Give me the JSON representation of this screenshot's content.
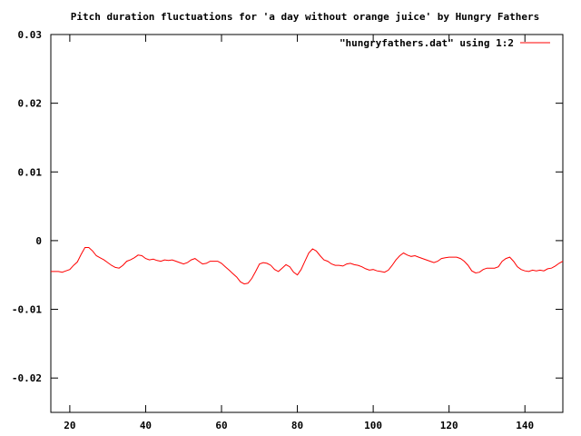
{
  "chart_data": {
    "type": "line",
    "title": "Pitch duration fluctuations for 'a day without orange juice' by Hungry Fathers",
    "xlabel": "",
    "ylabel": "",
    "xlim": [
      15,
      150
    ],
    "ylim": [
      -0.025,
      0.03
    ],
    "x_ticks": [
      20,
      40,
      60,
      80,
      100,
      120,
      140
    ],
    "y_ticks": [
      0.03,
      0.02,
      0.01,
      0,
      -0.01,
      -0.02
    ],
    "x_tick_labels": [
      "20",
      "40",
      "60",
      "80",
      "100",
      "120",
      "140"
    ],
    "y_tick_labels": [
      "0.03",
      "0.02",
      "0.01",
      "0",
      "-0.01",
      "-0.02"
    ],
    "grid": false,
    "legend_position": "top-right",
    "series": [
      {
        "name": "\"hungryfathers.dat\" using 1:2",
        "color": "#ff0000",
        "points": [
          [
            15,
            -0.0045
          ],
          [
            17,
            -0.0045
          ],
          [
            18,
            -0.0046
          ],
          [
            19,
            -0.0044
          ],
          [
            20,
            -0.0042
          ],
          [
            21,
            -0.0036
          ],
          [
            22,
            -0.0031
          ],
          [
            23,
            -0.002
          ],
          [
            24,
            -0.001
          ],
          [
            25,
            -0.001
          ],
          [
            26,
            -0.0015
          ],
          [
            27,
            -0.0022
          ],
          [
            28,
            -0.0025
          ],
          [
            29,
            -0.0028
          ],
          [
            30,
            -0.0032
          ],
          [
            31,
            -0.0036
          ],
          [
            32,
            -0.0039
          ],
          [
            33,
            -0.004
          ],
          [
            34,
            -0.0036
          ],
          [
            35,
            -0.003
          ],
          [
            36,
            -0.0028
          ],
          [
            37,
            -0.0025
          ],
          [
            38,
            -0.0021
          ],
          [
            39,
            -0.0022
          ],
          [
            40,
            -0.0026
          ],
          [
            41,
            -0.0028
          ],
          [
            42,
            -0.0027
          ],
          [
            43,
            -0.0029
          ],
          [
            44,
            -0.003
          ],
          [
            45,
            -0.0028
          ],
          [
            46,
            -0.0029
          ],
          [
            47,
            -0.0028
          ],
          [
            48,
            -0.003
          ],
          [
            49,
            -0.0032
          ],
          [
            50,
            -0.0034
          ],
          [
            51,
            -0.0032
          ],
          [
            52,
            -0.0028
          ],
          [
            53,
            -0.0026
          ],
          [
            54,
            -0.003
          ],
          [
            55,
            -0.0034
          ],
          [
            56,
            -0.0033
          ],
          [
            57,
            -0.003
          ],
          [
            58,
            -0.003
          ],
          [
            59,
            -0.003
          ],
          [
            60,
            -0.0033
          ],
          [
            61,
            -0.0038
          ],
          [
            62,
            -0.0043
          ],
          [
            63,
            -0.0048
          ],
          [
            64,
            -0.0053
          ],
          [
            65,
            -0.006
          ],
          [
            66,
            -0.0063
          ],
          [
            67,
            -0.0062
          ],
          [
            68,
            -0.0055
          ],
          [
            69,
            -0.0045
          ],
          [
            70,
            -0.0034
          ],
          [
            71,
            -0.0032
          ],
          [
            72,
            -0.0033
          ],
          [
            73,
            -0.0036
          ],
          [
            74,
            -0.0042
          ],
          [
            75,
            -0.0045
          ],
          [
            76,
            -0.004
          ],
          [
            77,
            -0.0035
          ],
          [
            78,
            -0.0038
          ],
          [
            79,
            -0.0046
          ],
          [
            80,
            -0.005
          ],
          [
            81,
            -0.0042
          ],
          [
            82,
            -0.003
          ],
          [
            83,
            -0.0018
          ],
          [
            84,
            -0.0012
          ],
          [
            85,
            -0.0015
          ],
          [
            86,
            -0.0022
          ],
          [
            87,
            -0.0028
          ],
          [
            88,
            -0.003
          ],
          [
            89,
            -0.0034
          ],
          [
            90,
            -0.0036
          ],
          [
            91,
            -0.0036
          ],
          [
            92,
            -0.0037
          ],
          [
            93,
            -0.0034
          ],
          [
            94,
            -0.0033
          ],
          [
            95,
            -0.0035
          ],
          [
            96,
            -0.0036
          ],
          [
            97,
            -0.0038
          ],
          [
            98,
            -0.0041
          ],
          [
            99,
            -0.0043
          ],
          [
            100,
            -0.0042
          ],
          [
            101,
            -0.0044
          ],
          [
            102,
            -0.0045
          ],
          [
            103,
            -0.0046
          ],
          [
            104,
            -0.0043
          ],
          [
            105,
            -0.0036
          ],
          [
            106,
            -0.0028
          ],
          [
            107,
            -0.0022
          ],
          [
            108,
            -0.0018
          ],
          [
            109,
            -0.0021
          ],
          [
            110,
            -0.0023
          ],
          [
            111,
            -0.0022
          ],
          [
            112,
            -0.0024
          ],
          [
            113,
            -0.0026
          ],
          [
            114,
            -0.0028
          ],
          [
            115,
            -0.003
          ],
          [
            116,
            -0.0032
          ],
          [
            117,
            -0.003
          ],
          [
            118,
            -0.0026
          ],
          [
            119,
            -0.0025
          ],
          [
            120,
            -0.0024
          ],
          [
            121,
            -0.0024
          ],
          [
            122,
            -0.0024
          ],
          [
            123,
            -0.0026
          ],
          [
            124,
            -0.003
          ],
          [
            125,
            -0.0036
          ],
          [
            126,
            -0.0044
          ],
          [
            127,
            -0.0047
          ],
          [
            128,
            -0.0046
          ],
          [
            129,
            -0.0042
          ],
          [
            130,
            -0.004
          ],
          [
            131,
            -0.004
          ],
          [
            132,
            -0.004
          ],
          [
            133,
            -0.0038
          ],
          [
            134,
            -0.003
          ],
          [
            135,
            -0.0026
          ],
          [
            136,
            -0.0024
          ],
          [
            137,
            -0.003
          ],
          [
            138,
            -0.0038
          ],
          [
            139,
            -0.0042
          ],
          [
            140,
            -0.0044
          ],
          [
            141,
            -0.0045
          ],
          [
            142,
            -0.0043
          ],
          [
            143,
            -0.0044
          ],
          [
            144,
            -0.0043
          ],
          [
            145,
            -0.0044
          ],
          [
            146,
            -0.0041
          ],
          [
            147,
            -0.004
          ],
          [
            148,
            -0.0037
          ],
          [
            149,
            -0.0033
          ],
          [
            150,
            -0.003
          ]
        ]
      }
    ]
  }
}
